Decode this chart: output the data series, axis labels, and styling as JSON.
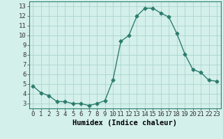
{
  "x": [
    0,
    1,
    2,
    3,
    4,
    5,
    6,
    7,
    8,
    9,
    10,
    11,
    12,
    13,
    14,
    15,
    16,
    17,
    18,
    19,
    20,
    21,
    22,
    23
  ],
  "y": [
    4.8,
    4.1,
    3.8,
    3.2,
    3.2,
    3.0,
    3.0,
    2.8,
    3.0,
    3.3,
    5.4,
    9.4,
    10.0,
    12.0,
    12.8,
    12.8,
    12.3,
    11.9,
    10.2,
    8.1,
    6.5,
    6.2,
    5.4,
    5.3
  ],
  "line_color": "#2d7d6e",
  "marker": "D",
  "marker_size": 2.5,
  "bg_color": "#d4f0eb",
  "grid_color": "#aad4ce",
  "xlabel": "Humidex (Indice chaleur)",
  "xlim": [
    -0.5,
    23.5
  ],
  "ylim": [
    2.5,
    13.5
  ],
  "yticks": [
    3,
    4,
    5,
    6,
    7,
    8,
    9,
    10,
    11,
    12,
    13
  ],
  "xticks": [
    0,
    1,
    2,
    3,
    4,
    5,
    6,
    7,
    8,
    9,
    10,
    11,
    12,
    13,
    14,
    15,
    16,
    17,
    18,
    19,
    20,
    21,
    22,
    23
  ],
  "xlabel_fontsize": 7.5,
  "tick_fontsize": 6.5,
  "line_width": 1.0
}
